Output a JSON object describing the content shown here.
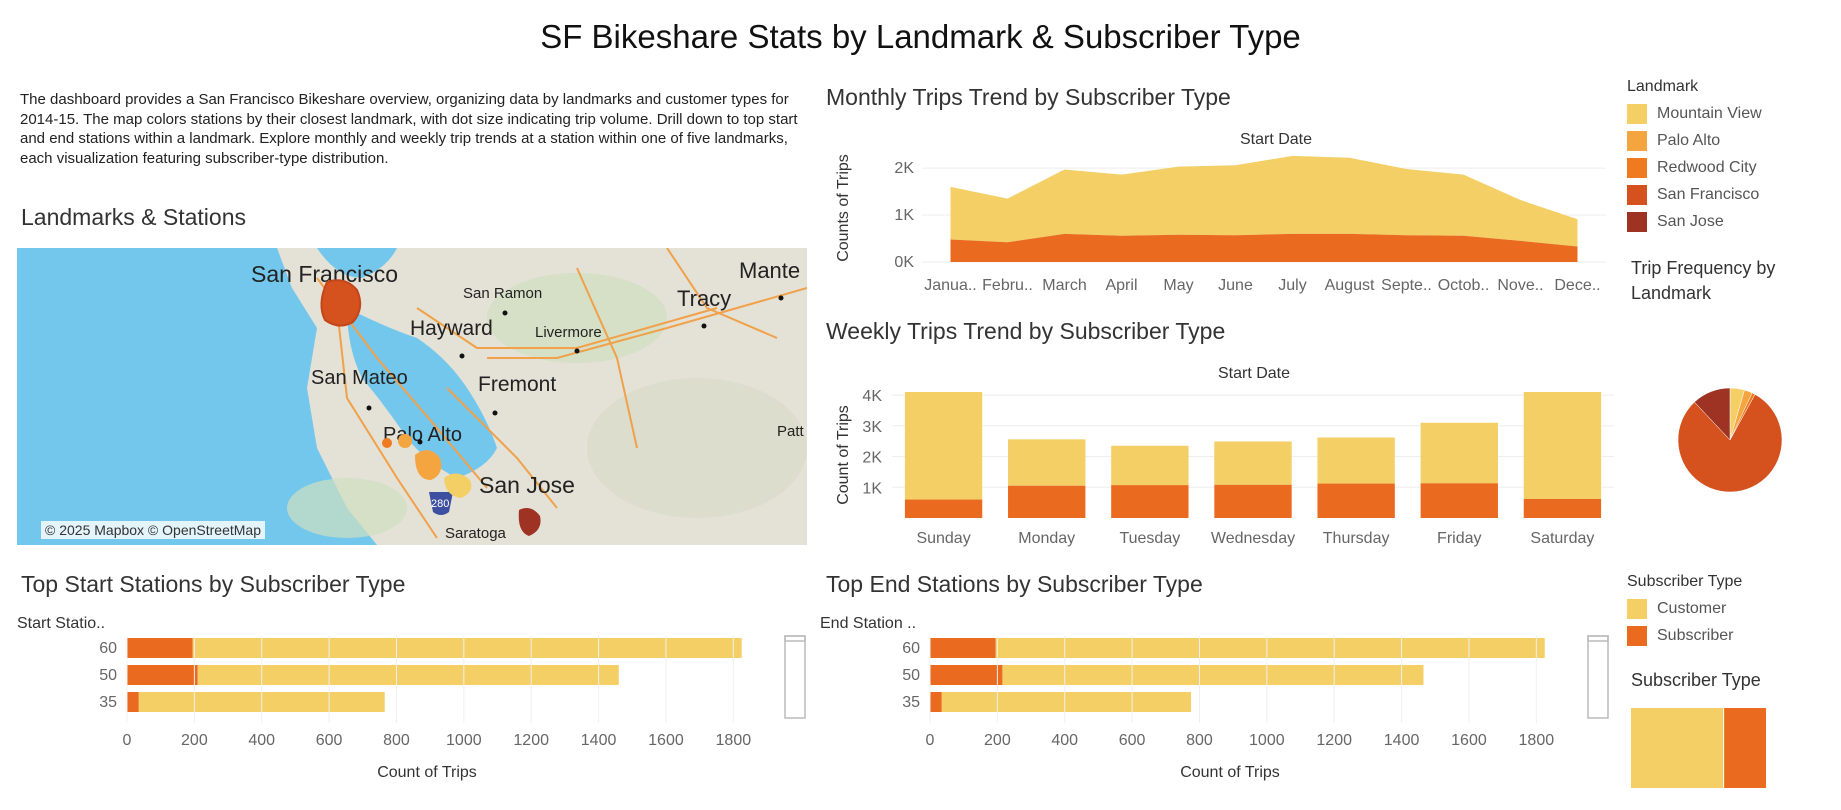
{
  "dashboard": {
    "title": "SF Bikeshare Stats by Landmark & Subscriber Type",
    "description": "The dashboard provides a San Francisco Bikeshare overview, organizing data by landmarks and customer types for 2014-15. The map colors stations by their closest landmark, with dot size indicating trip volume. Drill down to top start and end stations within a landmark. Explore monthly and weekly trip trends at a station within one of five landmarks, each visualization featuring subscriber-type distribution."
  },
  "map": {
    "title": "Landmarks & Stations",
    "credit": "© 2025 Mapbox © OpenStreetMap",
    "places": [
      "San Francisco",
      "San Ramon",
      "Mante",
      "Tracy",
      "Hayward",
      "Livermore",
      "San Mateo",
      "Fremont",
      "Palo Alto",
      "San Jose",
      "Patt",
      "Saratoga"
    ],
    "highway_shield": "280"
  },
  "colors": {
    "mountain_view": "#f3cf66",
    "palo_alto": "#f5a53f",
    "redwood_city": "#ef7a1f",
    "san_francisco": "#d5521f",
    "san_jose": "#9e3323",
    "customer": "#f3cf66",
    "subscriber": "#ea6b1f"
  },
  "legend_landmark": {
    "title": "Landmark",
    "items": [
      {
        "label": "Mountain View",
        "color": "#f3cf66"
      },
      {
        "label": "Palo Alto",
        "color": "#f5a53f"
      },
      {
        "label": "Redwood City",
        "color": "#ef7a1f"
      },
      {
        "label": "San Francisco",
        "color": "#d5521f"
      },
      {
        "label": "San Jose",
        "color": "#9e3323"
      }
    ]
  },
  "legend_subscriber": {
    "title": "Subscriber Type",
    "items": [
      {
        "label": "Customer",
        "color": "#f3cf66"
      },
      {
        "label": "Subscriber",
        "color": "#ea6b1f"
      }
    ]
  },
  "chart_data": [
    {
      "id": "monthly",
      "type": "area",
      "title": "Monthly Trips Trend by Subscriber Type",
      "subtitle": "Start Date",
      "ylabel": "Counts of Trips",
      "categories": [
        "Janua..",
        "Febru..",
        "March",
        "April",
        "May",
        "June",
        "July",
        "August",
        "Septe..",
        "Octob..",
        "Nove..",
        "Dece.."
      ],
      "y_ticks": [
        "0K",
        "1K",
        "2K"
      ],
      "ylim": [
        0,
        2300
      ],
      "series": [
        {
          "name": "Subscriber",
          "values": [
            480,
            420,
            600,
            560,
            580,
            570,
            600,
            600,
            570,
            560,
            450,
            330
          ]
        },
        {
          "name": "Customer",
          "values": [
            1120,
            930,
            1370,
            1300,
            1450,
            1490,
            1660,
            1620,
            1410,
            1300,
            870,
            580
          ]
        }
      ]
    },
    {
      "id": "weekly",
      "type": "bar",
      "title": "Weekly Trips Trend by Subscriber Type",
      "subtitle": "Start Date",
      "ylabel": "Count of Trips",
      "categories": [
        "Sunday",
        "Monday",
        "Tuesday",
        "Wednesday",
        "Thursday",
        "Friday",
        "Saturday"
      ],
      "y_ticks": [
        "1K",
        "2K",
        "3K",
        "4K"
      ],
      "ylim": [
        0,
        4100
      ],
      "series": [
        {
          "name": "Subscriber",
          "values": [
            600,
            1050,
            1070,
            1080,
            1120,
            1130,
            620
          ]
        },
        {
          "name": "Customer",
          "values": [
            3500,
            1510,
            1280,
            1410,
            1500,
            1970,
            3480
          ]
        }
      ]
    },
    {
      "id": "landmark-pie",
      "type": "pie",
      "title": "Trip Frequency by Landmark",
      "categories": [
        "Mountain View",
        "Palo Alto",
        "Redwood City",
        "San Francisco",
        "San Jose"
      ],
      "values": [
        4.5,
        2.5,
        1,
        80,
        12
      ]
    },
    {
      "id": "top-start",
      "type": "bar",
      "orientation": "horizontal",
      "title": "Top Start Stations by Subscriber Type",
      "ylabel": "Start Statio..",
      "xlabel": "Count of Trips",
      "categories": [
        "60",
        "50",
        "35"
      ],
      "x_ticks": [
        "0",
        "200",
        "400",
        "600",
        "800",
        "1000",
        "1200",
        "1400",
        "1600",
        "1800"
      ],
      "xlim": [
        0,
        1900
      ],
      "series": [
        {
          "name": "Subscriber",
          "values": [
            195,
            210,
            35
          ]
        },
        {
          "name": "Customer",
          "values": [
            1630,
            1250,
            730
          ]
        }
      ]
    },
    {
      "id": "top-end",
      "type": "bar",
      "orientation": "horizontal",
      "title": "Top End Stations by Subscriber Type",
      "ylabel": "End Station ..",
      "xlabel": "Count of Trips",
      "categories": [
        "60",
        "50",
        "35"
      ],
      "x_ticks": [
        "0",
        "200",
        "400",
        "600",
        "800",
        "1000",
        "1200",
        "1400",
        "1600",
        "1800"
      ],
      "xlim": [
        0,
        1900
      ],
      "series": [
        {
          "name": "Subscriber",
          "values": [
            195,
            215,
            35
          ]
        },
        {
          "name": "Customer",
          "values": [
            1630,
            1250,
            740
          ]
        }
      ]
    },
    {
      "id": "subscriber-share",
      "type": "bar",
      "orientation": "stacked-horizontal",
      "title": "Subscriber Type",
      "categories": [
        "Customer",
        "Subscriber"
      ],
      "values": [
        69,
        31
      ]
    }
  ]
}
